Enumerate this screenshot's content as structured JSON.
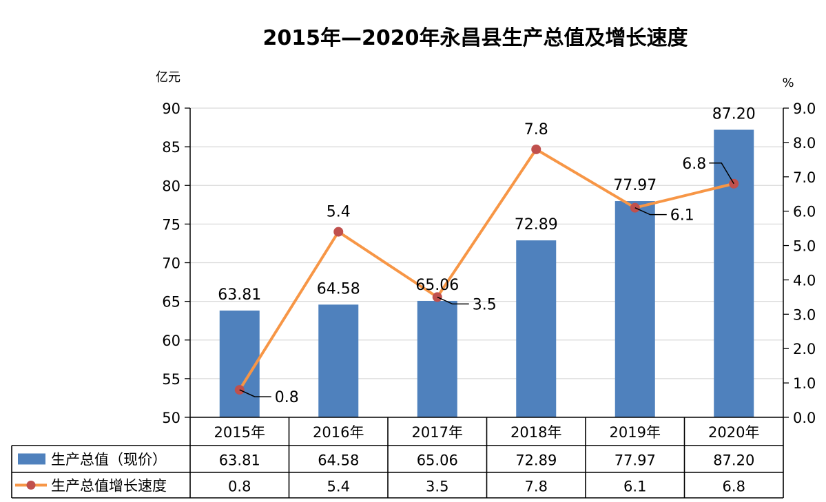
{
  "chart_data": {
    "type": "bar+line",
    "title": "2015年—2020年永昌县生产总值及增长速度",
    "left_unit": "亿元",
    "right_unit": "%",
    "categories": [
      "2015年",
      "2016年",
      "2017年",
      "2018年",
      "2019年",
      "2020年"
    ],
    "bar_series": {
      "name": "生产总值（现价）",
      "values": [
        63.81,
        64.58,
        65.06,
        72.89,
        77.97,
        87.2
      ],
      "labels": [
        "63.81",
        "64.58",
        "65.06",
        "72.89",
        "77.97",
        "87.20"
      ]
    },
    "line_series": {
      "name": "生产总值增长速度",
      "values": [
        0.8,
        5.4,
        3.5,
        7.8,
        6.1,
        6.8
      ],
      "labels": [
        "0.8",
        "5.4",
        "3.5",
        "7.8",
        "6.1",
        "6.8"
      ]
    },
    "ylim_left": [
      50,
      90
    ],
    "yticks_left": [
      "50",
      "55",
      "60",
      "65",
      "70",
      "75",
      "80",
      "85",
      "90"
    ],
    "ylim_right": [
      0,
      9
    ],
    "yticks_right": [
      "0.0",
      "1.0",
      "2.0",
      "3.0",
      "4.0",
      "5.0",
      "6.0",
      "7.0",
      "8.0",
      "9.0"
    ],
    "grid": true,
    "legend": "data-table",
    "colors": {
      "bar": "#4f81bd",
      "line": "#f79646",
      "marker": "#c0504d"
    }
  }
}
